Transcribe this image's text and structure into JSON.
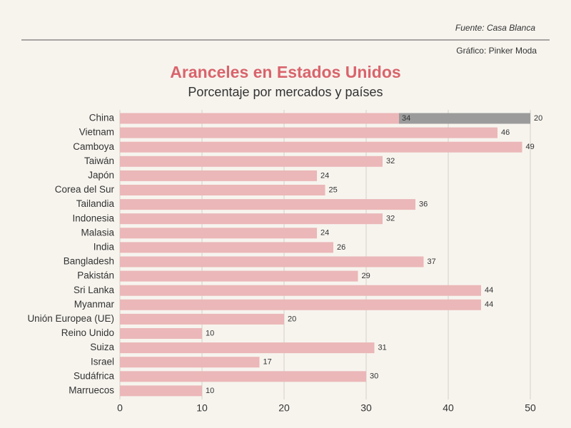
{
  "chart_data": {
    "type": "bar",
    "orientation": "horizontal",
    "stacked": true,
    "title": "Aranceles en Estados Unidos",
    "subtitle": "Porcentaje por mercados y países",
    "source": "Fuente: Casa Blanca",
    "credit": "Gráfico: Pinker Moda",
    "categories": [
      "China",
      "Vietnam",
      "Camboya",
      "Taiwán",
      "Japón",
      "Corea del Sur",
      "Tailandia",
      "Indonesia",
      "Malasia",
      "India",
      "Bangladesh",
      "Pakistán",
      "Sri Lanka",
      "Myanmar",
      "Unión Europea (UE)",
      "Reino Unido",
      "Suiza",
      "Israel",
      "Sudáfrica",
      "Marruecos"
    ],
    "series": [
      {
        "color": "#ebb7b8",
        "values": [
          34,
          46,
          49,
          32,
          24,
          25,
          36,
          32,
          24,
          26,
          37,
          29,
          44,
          44,
          20,
          10,
          31,
          17,
          30,
          10
        ]
      },
      {
        "color": "#9b9b9b",
        "values": [
          20,
          null,
          null,
          null,
          null,
          null,
          null,
          null,
          null,
          null,
          null,
          null,
          null,
          null,
          null,
          null,
          null,
          null,
          null,
          null
        ]
      }
    ],
    "xlim": [
      0,
      50
    ],
    "xticks": [
      0,
      10,
      20,
      30,
      40,
      50
    ],
    "grid": true,
    "title_color": "#d9646c"
  }
}
